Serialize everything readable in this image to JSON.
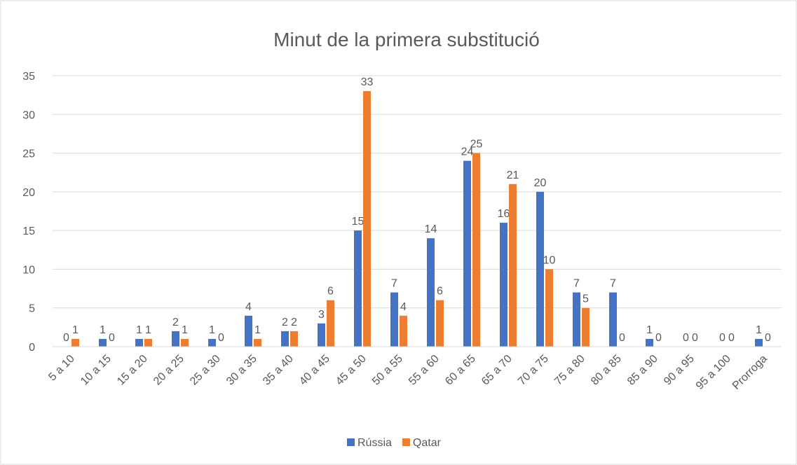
{
  "chart_data": {
    "type": "bar",
    "title": "Minut de la primera substitució",
    "categories": [
      "5 a 10",
      "10 a 15",
      "15 a 20",
      "20 a 25",
      "25 a 30",
      "30 a 35",
      "35 a 40",
      "40 a 45",
      "45 a 50",
      "50 a 55",
      "55 a 60",
      "60 a 65",
      "65 a 70",
      "70 a 75",
      "75 a 80",
      "80 a 85",
      "85 a 90",
      "90 a 95",
      "95 a 100",
      "Prorroga"
    ],
    "series": [
      {
        "name": "Rússia",
        "color": "#4472c4",
        "values": [
          0,
          1,
          1,
          2,
          1,
          4,
          2,
          3,
          15,
          7,
          14,
          24,
          16,
          20,
          7,
          7,
          1,
          0,
          0,
          1
        ]
      },
      {
        "name": "Qatar",
        "color": "#ed7d31",
        "values": [
          1,
          0,
          1,
          1,
          0,
          1,
          2,
          6,
          33,
          4,
          6,
          25,
          21,
          10,
          5,
          0,
          0,
          0,
          0,
          0
        ]
      }
    ],
    "ylim": [
      0,
      35
    ],
    "yticks": [
      0,
      5,
      10,
      15,
      20,
      25,
      30,
      35
    ],
    "grid": true,
    "legend": "bottom"
  }
}
